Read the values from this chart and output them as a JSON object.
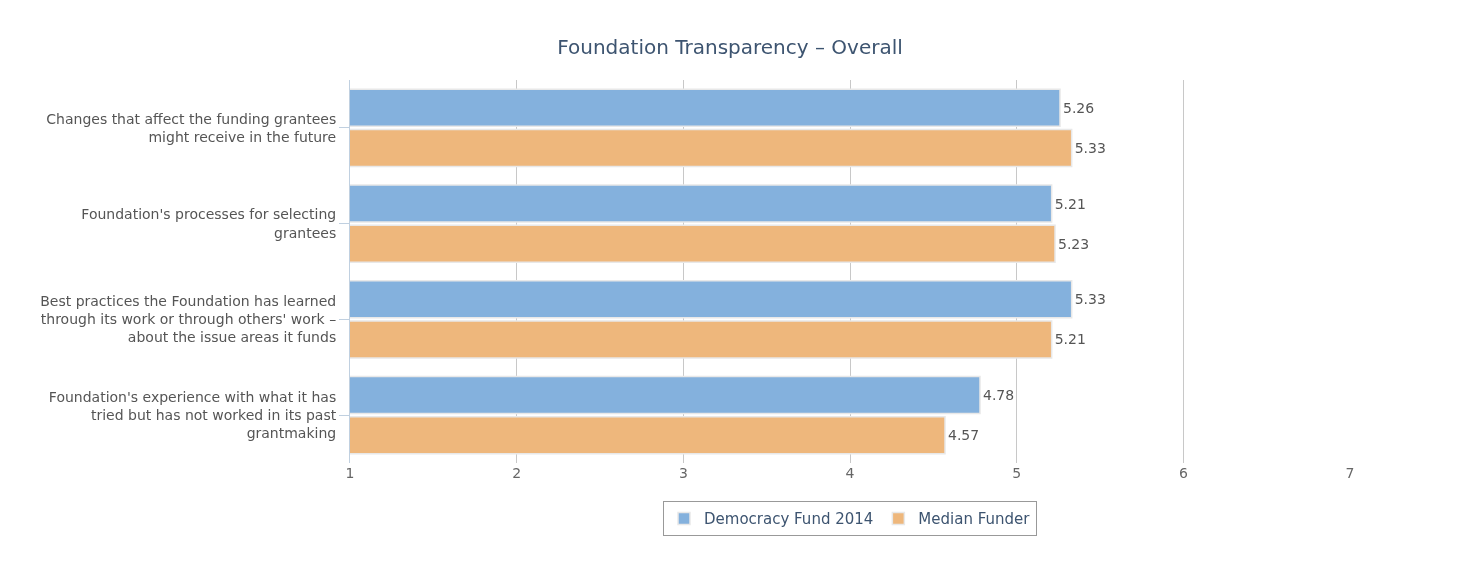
{
  "chart_data": {
    "type": "bar",
    "orientation": "horizontal",
    "title": "Foundation Transparency – Overall",
    "categories": [
      "Changes that affect the funding grantees might receive in the future",
      "Foundation's processes for selecting grantees",
      "Best practices the Foundation has learned through its work or through others' work – about the issue areas it funds",
      "Foundation's experience with what it has tried but has not worked in its past grantmaking"
    ],
    "series": [
      {
        "name": "Democracy Fund 2014",
        "color": "#84b1dd",
        "values": [
          5.26,
          5.21,
          5.33,
          4.78
        ]
      },
      {
        "name": "Median Funder",
        "color": "#eeb77c",
        "values": [
          5.33,
          5.23,
          5.21,
          4.57
        ]
      }
    ],
    "xlim": [
      1,
      7
    ],
    "xticks": [
      1,
      2,
      3,
      4,
      5,
      6,
      7
    ],
    "grid": "x",
    "legend": "bottom",
    "data_labels": true
  }
}
